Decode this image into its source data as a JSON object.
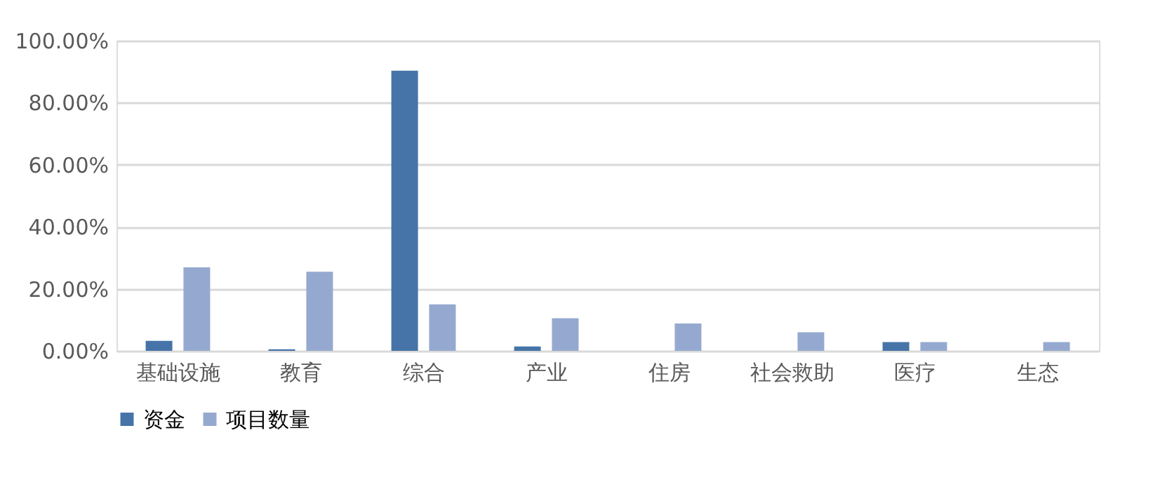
{
  "chart_data": {
    "type": "bar",
    "categories": [
      "基础设施",
      "教育",
      "综合",
      "产业",
      "住房",
      "社会救助",
      "医疗",
      "生态"
    ],
    "series": [
      {
        "name": "资金",
        "color": "#4674a8",
        "values": [
          3.2,
          0.5,
          90.3,
          1.4,
          0,
          0,
          2.8,
          0
        ]
      },
      {
        "name": "项目数量",
        "color": "#95a9d0",
        "values": [
          26.9,
          25.5,
          15.0,
          10.5,
          8.8,
          6.0,
          2.8,
          2.8
        ]
      }
    ],
    "ylim": [
      0,
      100
    ],
    "yticks": [
      {
        "value": 0,
        "label": "0.00%"
      },
      {
        "value": 20,
        "label": "20.00%"
      },
      {
        "value": 40,
        "label": "40.00%"
      },
      {
        "value": 60,
        "label": "60.00%"
      },
      {
        "value": 80,
        "label": "80.00%"
      },
      {
        "value": 100,
        "label": "100.00%"
      }
    ],
    "grid": "y",
    "legend": "bottom"
  }
}
